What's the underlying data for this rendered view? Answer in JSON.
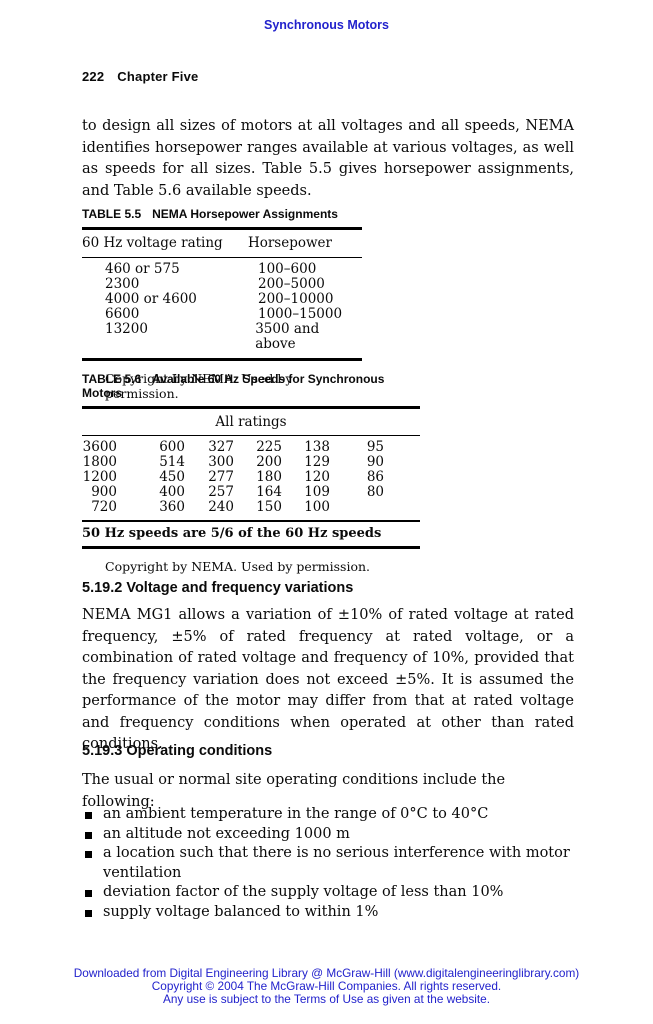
{
  "colors": {
    "link_blue": "#2222cc",
    "text": "#0a0a0a"
  },
  "page": {
    "running_head": "Synchronous Motors",
    "page_number": "222",
    "chapter_title": "Chapter Five",
    "intro_paragraph": "to design all sizes of motors at all voltages and all speeds, NEMA identifies horsepower ranges available at various voltages, as well as speeds for all sizes. Table 5.5 gives horsepower assignments, and Table 5.6 available speeds."
  },
  "table_5_5": {
    "label": "TABLE 5.5",
    "title": "NEMA Horsepower Assignments",
    "col_headers": [
      "60 Hz voltage rating",
      "Horsepower"
    ],
    "rows": [
      [
        "460 or 575",
        "100–600"
      ],
      [
        "2300",
        "200–5000"
      ],
      [
        "4000 or 4600",
        "200–10000"
      ],
      [
        "6600",
        "1000–15000"
      ],
      [
        "13200",
        "3500 and above"
      ]
    ],
    "copyright": "Copyright by NEMA. Used by permission."
  },
  "table_5_6": {
    "label": "TABLE 5.6",
    "title": "Available 60 Hz Speeds for Synchronous Motors",
    "span_header": "All ratings",
    "rows": [
      [
        "3600",
        "600",
        "327",
        "225",
        "138",
        "95"
      ],
      [
        "1800",
        "514",
        "300",
        "200",
        "129",
        "90"
      ],
      [
        "1200",
        "450",
        "277",
        "180",
        "120",
        "86"
      ],
      [
        "900",
        "400",
        "257",
        "164",
        "109",
        "80"
      ],
      [
        "720",
        "360",
        "240",
        "150",
        "100",
        ""
      ]
    ],
    "footnote": "50 Hz speeds are 5/6 of the 60 Hz speeds",
    "copyright": "Copyright by NEMA. Used by permission."
  },
  "section_5_19_2": {
    "heading": "5.19.2 Voltage and frequency variations",
    "body": "NEMA MG1 allows a variation of ±10% of rated voltage at rated frequency, ±5% of rated frequency at rated voltage, or a combination of rated voltage and frequency of 10%, provided that the frequency variation does not exceed ±5%. It is assumed the performance of the motor may differ from that at rated voltage and frequency conditions when operated at other than rated conditions."
  },
  "section_5_19_3": {
    "heading": "5.19.3 Operating conditions",
    "intro": "The usual or normal site operating conditions include the following:",
    "bullets": [
      "an ambient temperature in the range of 0°C to 40°C",
      "an altitude not exceeding 1000 m",
      "a location such that there is no serious interference with motor ventilation",
      "deviation factor of the supply voltage of less than 10%",
      "supply voltage balanced to within 1%"
    ]
  },
  "footer": {
    "line1": "Downloaded from Digital Engineering Library @ McGraw-Hill (www.digitalengineeringlibrary.com)",
    "line2": "Copyright © 2004 The McGraw-Hill Companies. All rights reserved.",
    "line3": "Any use is subject to the Terms of Use as given at the website."
  }
}
